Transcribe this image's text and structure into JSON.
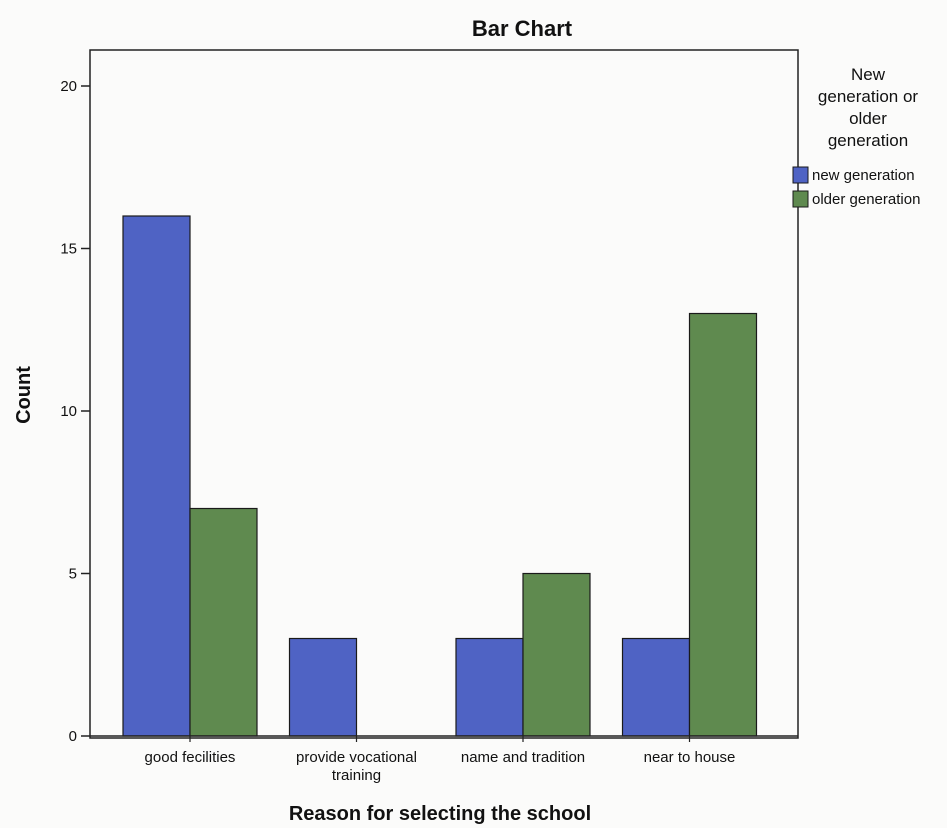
{
  "chart_data": {
    "type": "bar",
    "title": "Bar Chart",
    "xlabel": "Reason for selecting the school",
    "ylabel": "Count",
    "ylim": [
      0,
      20
    ],
    "yticks": [
      0,
      5,
      10,
      15,
      20
    ],
    "categories": [
      "good fecilities",
      "provide vocational training",
      "name and tradition",
      "near to house"
    ],
    "category_lines": [
      [
        "good fecilities"
      ],
      [
        "provide vocational",
        "training"
      ],
      [
        "name and tradition"
      ],
      [
        "near to house"
      ]
    ],
    "series": [
      {
        "name": "new generation",
        "values": [
          16,
          3,
          3,
          3
        ],
        "color": "#4f63c4"
      },
      {
        "name": "older generation",
        "values": [
          7,
          0,
          5,
          13
        ],
        "color": "#5f8a4f"
      }
    ],
    "legend": {
      "title_lines": [
        "New",
        "generation or",
        "older",
        "generation"
      ],
      "position": "right"
    },
    "grid": false
  }
}
